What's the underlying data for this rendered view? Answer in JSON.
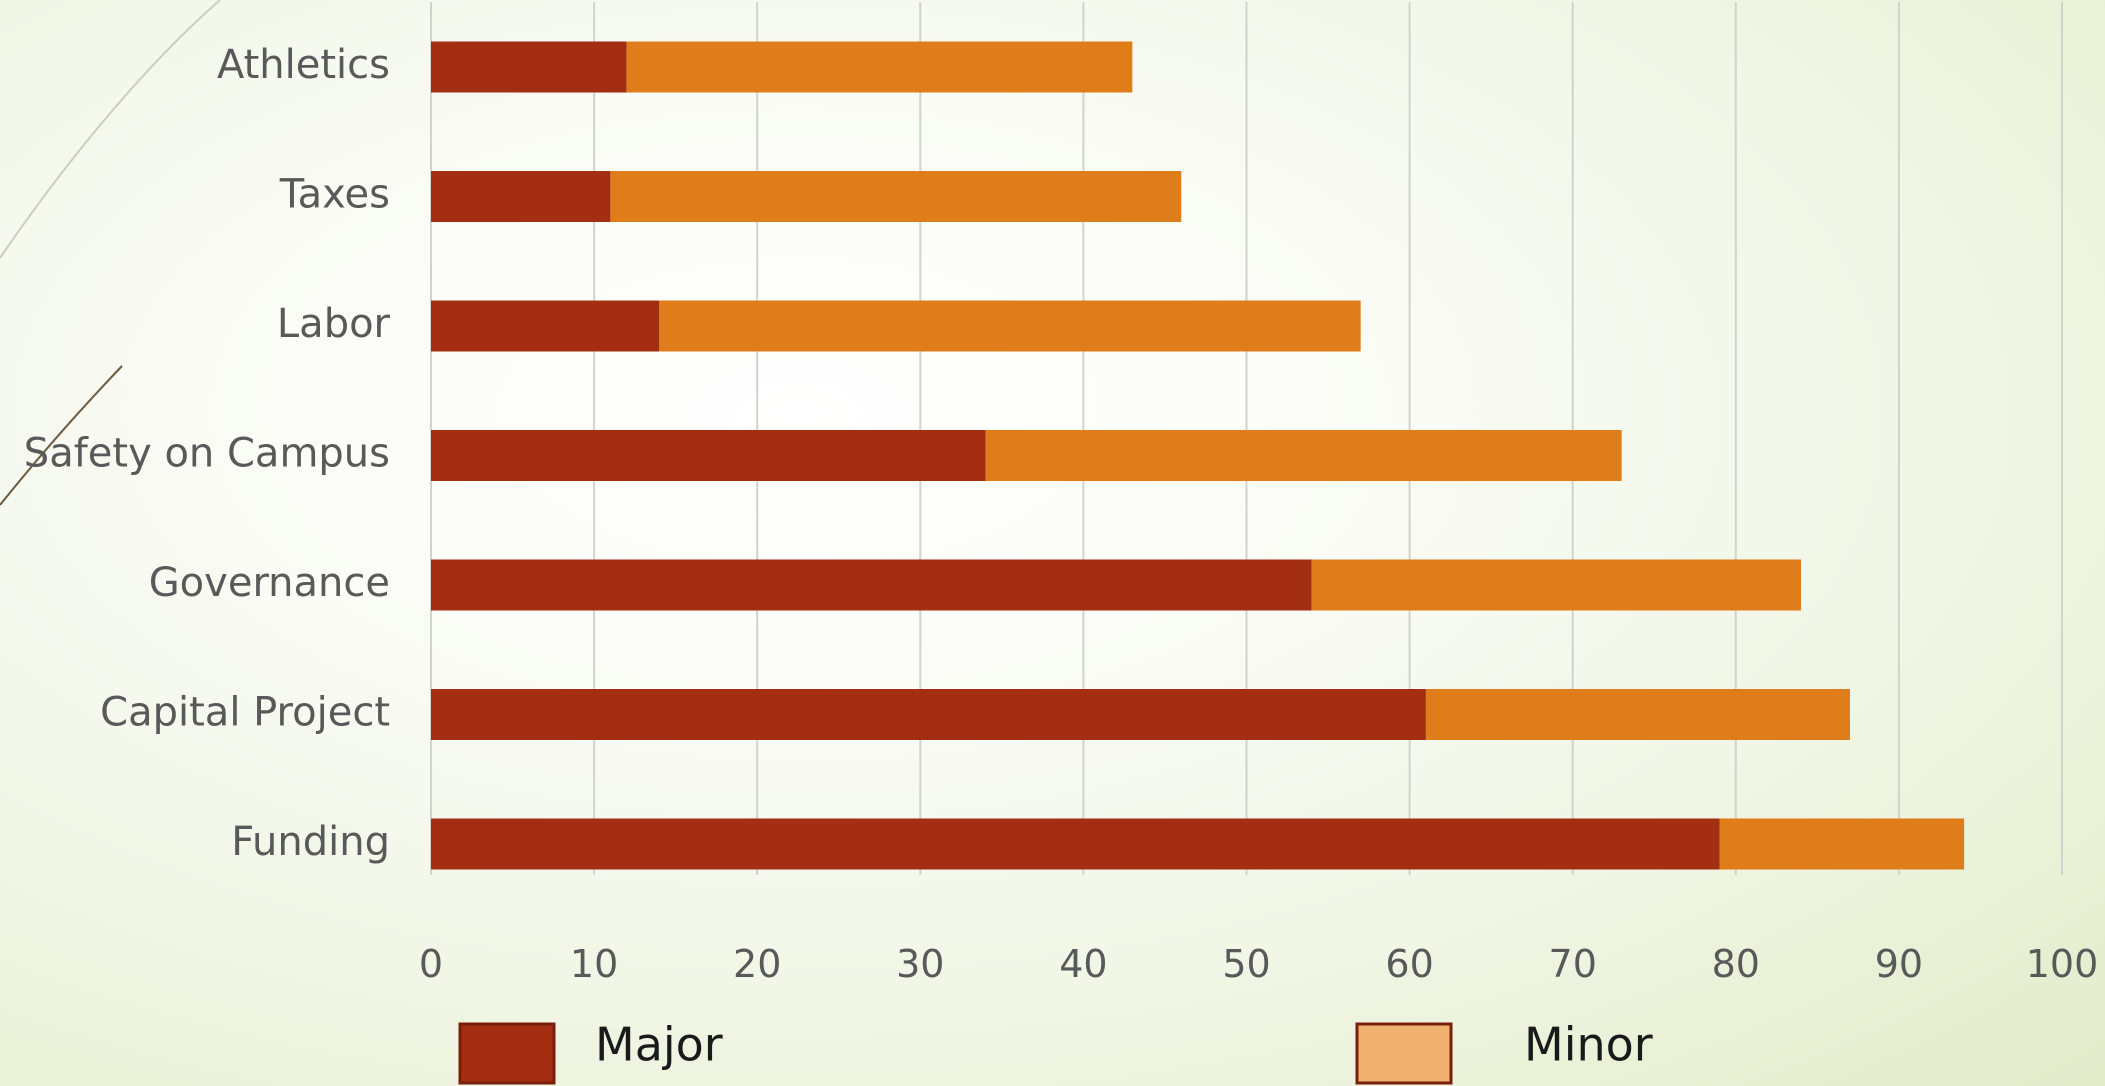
{
  "chart_data": {
    "type": "bar",
    "orientation": "horizontal",
    "stacked": true,
    "categories": [
      "Athletics",
      "Taxes",
      "Labor",
      "Safety on Campus",
      "Governance",
      "Capital Project",
      "Funding"
    ],
    "series": [
      {
        "name": "Major",
        "values": [
          12,
          11,
          14,
          34,
          54,
          61,
          79
        ],
        "color": "#a32e11",
        "legend_color": "#a32e11"
      },
      {
        "name": "Minor",
        "values": [
          31,
          35,
          43,
          39,
          30,
          26,
          15
        ],
        "color": "#e07d1b",
        "legend_color": "#f0b070"
      }
    ],
    "xlim": [
      0,
      100
    ],
    "xticks": [
      "0",
      "10",
      "20",
      "30",
      "40",
      "50",
      "60",
      "70",
      "80",
      "90",
      "100"
    ],
    "grid": true,
    "legend_position": "bottom",
    "title": "",
    "xlabel": "",
    "ylabel": ""
  }
}
